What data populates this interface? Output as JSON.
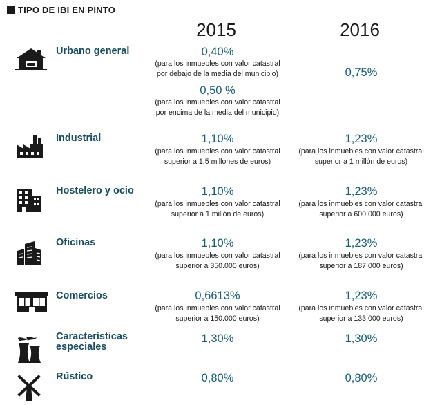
{
  "header": {
    "title": "TIPO DE IBI EN PINTO"
  },
  "years": [
    "2015",
    "2016"
  ],
  "colors": {
    "accent": "#1b5e74",
    "category": "#1b4d5e",
    "text": "#1a1a1a"
  },
  "rows": [
    {
      "name": "Urbano general",
      "icon": "house-icon",
      "y2015": [
        {
          "value": "0,40%",
          "note_l1": "(para los inmuebles con valor catastral",
          "note_l2": "por debajo de la media del municipio)"
        },
        {
          "value": "0,50 %",
          "note_l1": "(para los inmuebles con valor catastral",
          "note_l2": "por encima de la media del municipio)"
        }
      ],
      "y2016": {
        "value": "0,75%"
      }
    },
    {
      "name": "Industrial",
      "icon": "factory-icon",
      "y2015": {
        "value": "1,10%",
        "note_l1": "(para los inmuebles con valor catastral",
        "note_l2": "superior a 1,5 millones de euros)"
      },
      "y2016": {
        "value": "1,23%",
        "note_l1": "(para los inmuebles con valor catastral",
        "note_l2": "superior a 1 millón de euros)"
      }
    },
    {
      "name": "Hostelero y ocio",
      "icon": "hotel-building-icon",
      "y2015": {
        "value": "1,10%",
        "note_l1": "(para los inmuebles con valor catastral",
        "note_l2": "superior a 1 millón de euros)"
      },
      "y2016": {
        "value": "1,23%",
        "note_l1": "(para los inmuebles con valor catastral",
        "note_l2": "superior a 600.000 euros)"
      }
    },
    {
      "name": "Oficinas",
      "icon": "office-buildings-icon",
      "y2015": {
        "value": "1,10%",
        "note_l1": "(para los inmuebles con valor catastral",
        "note_l2": "superior a 350.000 euros)"
      },
      "y2016": {
        "value": "1,23%",
        "note_l1": "(para los inmuebles con valor catastral",
        "note_l2": "superior a 187.000 euros)"
      }
    },
    {
      "name": "Comercios",
      "icon": "storefront-icon",
      "y2015": {
        "value": "0,6613%",
        "note_l1": "(para los inmuebles con valor catastral",
        "note_l2": "superior a 150.000 euros)"
      },
      "y2016": {
        "value": "1,23%",
        "note_l1": "(para los inmuebles con valor catastral",
        "note_l2": "superior a 133.000 euros)"
      }
    },
    {
      "name_l1": "Características",
      "name_l2": "especiales",
      "icon": "cooling-towers-icon",
      "y2015": {
        "value": "1,30%"
      },
      "y2016": {
        "value": "1,30%"
      }
    },
    {
      "name": "Rústico",
      "icon": "windmill-icon",
      "y2015": {
        "value": "0,80%"
      },
      "y2016": {
        "value": "0,80%"
      }
    }
  ]
}
